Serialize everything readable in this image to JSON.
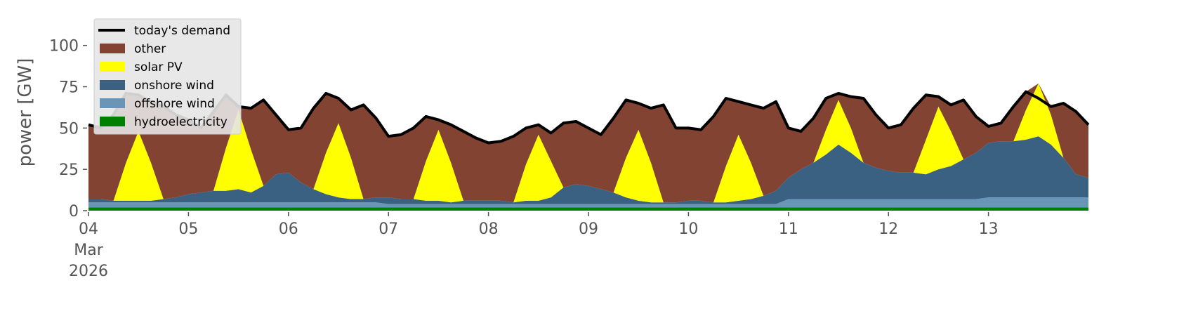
{
  "chart_data": {
    "type": "stacked-area",
    "y_label": "power [GW]",
    "ylim": [
      0,
      119
    ],
    "yticks": [
      0,
      25,
      50,
      75,
      100
    ],
    "xlim": [
      "2026-03-04T00:00",
      "2026-03-14T00:00"
    ],
    "xticks": [
      {
        "value": "2026-03-04T00:00",
        "label": "04\nMar\n2026"
      },
      {
        "value": "2026-03-05T00:00",
        "label": "05"
      },
      {
        "value": "2026-03-06T00:00",
        "label": "06"
      },
      {
        "value": "2026-03-07T00:00",
        "label": "07"
      },
      {
        "value": "2026-03-08T00:00",
        "label": "08"
      },
      {
        "value": "2026-03-09T00:00",
        "label": "09"
      },
      {
        "value": "2026-03-10T00:00",
        "label": "10"
      },
      {
        "value": "2026-03-11T00:00",
        "label": "11"
      },
      {
        "value": "2026-03-12T00:00",
        "label": "12"
      },
      {
        "value": "2026-03-13T00:00",
        "label": "13"
      }
    ],
    "legend": "upper left",
    "grid": false,
    "x": [
      "2026-03-04T00:00",
      "2026-03-04T03:00",
      "2026-03-04T06:00",
      "2026-03-04T09:00",
      "2026-03-04T12:00",
      "2026-03-04T15:00",
      "2026-03-04T18:00",
      "2026-03-04T21:00",
      "2026-03-05T00:00",
      "2026-03-05T03:00",
      "2026-03-05T06:00",
      "2026-03-05T09:00",
      "2026-03-05T12:00",
      "2026-03-05T15:00",
      "2026-03-05T18:00",
      "2026-03-05T21:00",
      "2026-03-06T00:00",
      "2026-03-06T03:00",
      "2026-03-06T06:00",
      "2026-03-06T09:00",
      "2026-03-06T12:00",
      "2026-03-06T15:00",
      "2026-03-06T18:00",
      "2026-03-06T21:00",
      "2026-03-07T00:00",
      "2026-03-07T03:00",
      "2026-03-07T06:00",
      "2026-03-07T09:00",
      "2026-03-07T12:00",
      "2026-03-07T15:00",
      "2026-03-07T18:00",
      "2026-03-07T21:00",
      "2026-03-08T00:00",
      "2026-03-08T03:00",
      "2026-03-08T06:00",
      "2026-03-08T09:00",
      "2026-03-08T12:00",
      "2026-03-08T15:00",
      "2026-03-08T18:00",
      "2026-03-08T21:00",
      "2026-03-09T00:00",
      "2026-03-09T03:00",
      "2026-03-09T06:00",
      "2026-03-09T09:00",
      "2026-03-09T12:00",
      "2026-03-09T15:00",
      "2026-03-09T18:00",
      "2026-03-09T21:00",
      "2026-03-10T00:00",
      "2026-03-10T03:00",
      "2026-03-10T06:00",
      "2026-03-10T09:00",
      "2026-03-10T12:00",
      "2026-03-10T15:00",
      "2026-03-10T18:00",
      "2026-03-10T21:00",
      "2026-03-11T00:00",
      "2026-03-11T03:00",
      "2026-03-11T06:00",
      "2026-03-11T09:00",
      "2026-03-11T12:00",
      "2026-03-11T15:00",
      "2026-03-11T18:00",
      "2026-03-11T21:00",
      "2026-03-12T00:00",
      "2026-03-12T03:00",
      "2026-03-12T06:00",
      "2026-03-12T09:00",
      "2026-03-12T12:00",
      "2026-03-12T15:00",
      "2026-03-12T18:00",
      "2026-03-12T21:00",
      "2026-03-13T00:00",
      "2026-03-13T03:00",
      "2026-03-13T06:00",
      "2026-03-13T09:00",
      "2026-03-13T12:00",
      "2026-03-13T15:00",
      "2026-03-13T18:00",
      "2026-03-13T21:00",
      "2026-03-14T00:00"
    ],
    "series": [
      {
        "name": "today's demand",
        "kind": "line",
        "color": "#000000",
        "values": [
          52,
          50,
          58,
          71,
          70,
          66,
          63,
          58,
          55,
          50,
          60,
          70,
          63,
          62,
          67,
          58,
          49,
          50,
          62,
          71,
          68,
          61,
          64,
          56,
          45,
          46,
          50,
          57,
          55,
          52,
          48,
          44,
          41,
          42,
          45,
          50,
          52,
          47,
          53,
          54,
          50,
          46,
          56,
          67,
          65,
          62,
          64,
          50,
          50,
          49,
          57,
          68,
          66,
          64,
          62,
          66,
          50,
          48,
          56,
          68,
          71,
          69,
          68,
          58,
          50,
          52,
          62,
          70,
          69,
          64,
          67,
          57,
          51,
          53,
          63,
          72,
          68,
          63,
          65,
          60,
          52
        ]
      },
      {
        "name": "other",
        "kind": "area",
        "color": "#824333",
        "values": [
          45,
          43,
          52,
          42,
          22,
          37,
          56,
          50,
          45,
          39,
          48,
          32,
          2,
          25,
          52,
          36,
          26,
          33,
          49,
          36,
          15,
          29,
          57,
          48,
          37,
          39,
          43,
          27,
          6,
          23,
          42,
          38,
          35,
          36,
          40,
          22,
          6,
          17,
          39,
          38,
          35,
          33,
          45,
          35,
          16,
          33,
          59,
          45,
          44,
          43,
          52,
          41,
          20,
          35,
          53,
          54,
          30,
          23,
          27,
          19,
          4,
          19,
          39,
          32,
          26,
          29,
          39,
          27,
          6,
          16,
          36,
          22,
          10,
          11,
          21,
          11,
          0,
          5,
          33,
          38,
          32
        ]
      },
      {
        "name": "solar PV",
        "kind": "area",
        "color": "#ffff00",
        "values": [
          0,
          0,
          0,
          23,
          42,
          23,
          0,
          0,
          0,
          0,
          0,
          26,
          48,
          26,
          0,
          0,
          0,
          0,
          0,
          25,
          45,
          25,
          0,
          0,
          0,
          0,
          0,
          24,
          43,
          24,
          0,
          0,
          0,
          0,
          0,
          22,
          40,
          22,
          0,
          0,
          0,
          0,
          0,
          24,
          43,
          24,
          0,
          0,
          0,
          0,
          0,
          22,
          40,
          22,
          0,
          0,
          0,
          0,
          0,
          15,
          27,
          15,
          0,
          0,
          0,
          0,
          0,
          21,
          38,
          21,
          0,
          0,
          0,
          0,
          0,
          18,
          32,
          18,
          0,
          0,
          0
        ]
      },
      {
        "name": "onshore wind",
        "kind": "area",
        "color": "#3b6182",
        "values": [
          2,
          2,
          1,
          1,
          1,
          1,
          2,
          3,
          5,
          6,
          7,
          7,
          8,
          6,
          10,
          17,
          18,
          12,
          8,
          5,
          3,
          2,
          2,
          3,
          4,
          3,
          3,
          2,
          2,
          1,
          2,
          2,
          2,
          2,
          1,
          2,
          2,
          4,
          10,
          12,
          11,
          9,
          7,
          4,
          2,
          1,
          1,
          1,
          2,
          2,
          1,
          1,
          2,
          3,
          5,
          8,
          13,
          18,
          22,
          27,
          33,
          28,
          22,
          19,
          17,
          16,
          16,
          15,
          18,
          20,
          24,
          28,
          33,
          34,
          34,
          35,
          37,
          32,
          24,
          14,
          12
        ]
      },
      {
        "name": "offshore wind",
        "kind": "area",
        "color": "#6895b8",
        "values": [
          3,
          3,
          3,
          3,
          3,
          3,
          3,
          3,
          3,
          3,
          3,
          3,
          3,
          3,
          3,
          3,
          3,
          3,
          3,
          3,
          3,
          3,
          3,
          3,
          2,
          2,
          2,
          2,
          2,
          2,
          2,
          2,
          2,
          2,
          2,
          2,
          2,
          2,
          2,
          2,
          2,
          2,
          2,
          2,
          2,
          2,
          2,
          2,
          2,
          2,
          2,
          2,
          2,
          2,
          2,
          2,
          5,
          5,
          5,
          5,
          5,
          5,
          5,
          5,
          5,
          5,
          5,
          5,
          5,
          5,
          5,
          5,
          6,
          6,
          6,
          6,
          6,
          6,
          6,
          6,
          6
        ]
      },
      {
        "name": "hydroelectricity",
        "kind": "area",
        "color": "#008000",
        "values": [
          2,
          2,
          2,
          2,
          2,
          2,
          2,
          2,
          2,
          2,
          2,
          2,
          2,
          2,
          2,
          2,
          2,
          2,
          2,
          2,
          2,
          2,
          2,
          2,
          2,
          2,
          2,
          2,
          2,
          2,
          2,
          2,
          2,
          2,
          2,
          2,
          2,
          2,
          2,
          2,
          2,
          2,
          2,
          2,
          2,
          2,
          2,
          2,
          2,
          2,
          2,
          2,
          2,
          2,
          2,
          2,
          2,
          2,
          2,
          2,
          2,
          2,
          2,
          2,
          2,
          2,
          2,
          2,
          2,
          2,
          2,
          2,
          2,
          2,
          2,
          2,
          2,
          2,
          2,
          2,
          2
        ]
      }
    ]
  }
}
